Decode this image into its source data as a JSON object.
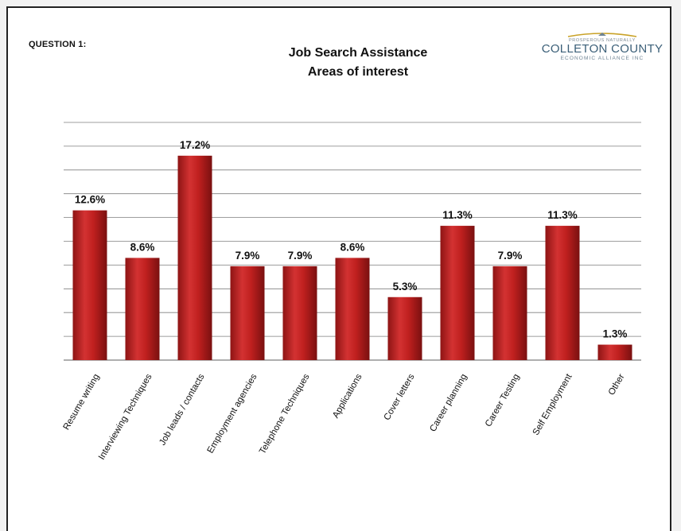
{
  "header": {
    "question": "QUESTION 1:",
    "title_line1": "Job Search Assistance",
    "title_line2": "Areas of interest"
  },
  "logo": {
    "tagline": "PROSPEROUS NATURALLY",
    "name": "COLLETON COUNTY",
    "sub": "ECONOMIC ALLIANCE INC"
  },
  "colors": {
    "bar": "#c0201f",
    "bar_dark": "#8e1414",
    "bar_light": "#e04848",
    "grid": "#7f7f7f",
    "accent": "#c9a227"
  },
  "chart_data": {
    "type": "bar",
    "title": "Job Search Assistance Areas of interest",
    "categories": [
      "Resume writing",
      "Interviewing Techniques",
      "Job leads / contacts",
      "Employment agencies",
      "Telephone Techniques",
      "Applications",
      "Cover letters",
      "Career planning",
      "Career Testing",
      "Self Employment",
      "Other"
    ],
    "values": [
      12.6,
      8.6,
      17.2,
      7.9,
      7.9,
      8.6,
      5.3,
      11.3,
      7.9,
      11.3,
      1.3
    ],
    "value_labels": [
      "12.6%",
      "8.6%",
      "17.2%",
      "7.9%",
      "7.9%",
      "8.6%",
      "5.3%",
      "11.3%",
      "7.9%",
      "11.3%",
      "1.3%"
    ],
    "ylim": [
      0,
      20
    ],
    "ytick_step": 2,
    "grid": true,
    "legend": "none",
    "xlabel": "",
    "ylabel": ""
  }
}
